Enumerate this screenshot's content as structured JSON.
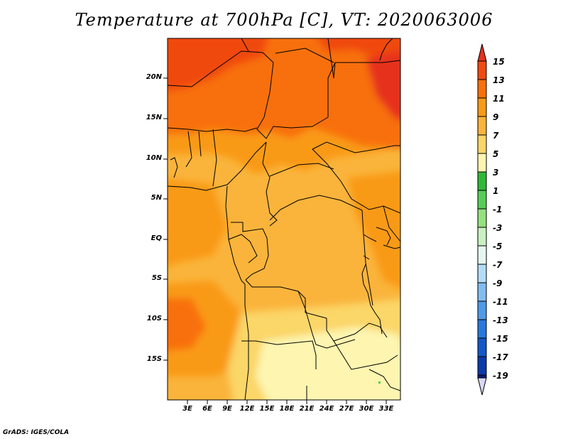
{
  "title": "Temperature at 700hPa [C], VT: 2020063006",
  "credit": "GrADS: IGES/COLA",
  "map": {
    "lat_labels": [
      "20N",
      "15N",
      "10N",
      "5N",
      "EQ",
      "5S",
      "10S",
      "15S"
    ],
    "lon_labels": [
      "3E",
      "6E",
      "9E",
      "12E",
      "15E",
      "18E",
      "21E",
      "24E",
      "27E",
      "30E",
      "33E"
    ]
  },
  "colorbar": {
    "labels": [
      "15",
      "13",
      "11",
      "9",
      "7",
      "5",
      "3",
      "1",
      "-1",
      "-3",
      "-5",
      "-7",
      "-9",
      "-11",
      "-13",
      "-15",
      "-17",
      "-19"
    ],
    "colors": [
      "#e6301c",
      "#f04a10",
      "#f8700a",
      "#f99a18",
      "#fab43c",
      "#fbd668",
      "#fdf5b0",
      "#30b838",
      "#58cc58",
      "#96e080",
      "#c8f0c0",
      "#e6f6f0",
      "#b4dcf8",
      "#82bcf0",
      "#509ae6",
      "#2a78dc",
      "#1458c8",
      "#0a3aaa",
      "#081c78",
      "#d8d8f4"
    ]
  }
}
